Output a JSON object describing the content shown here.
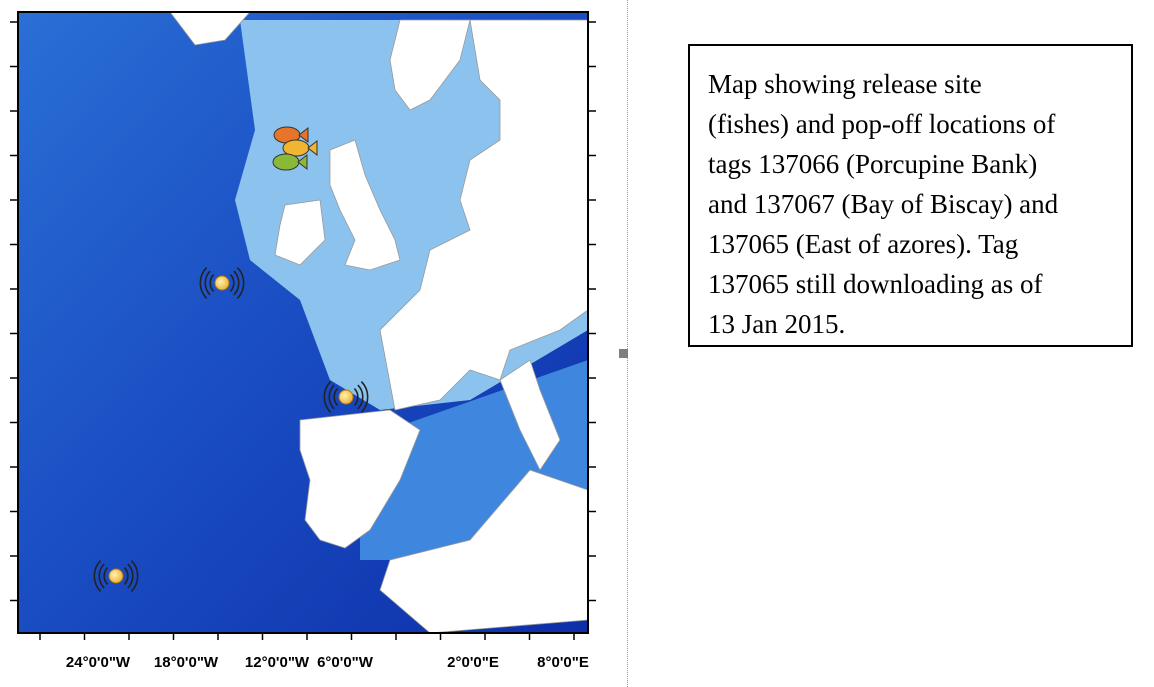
{
  "map": {
    "x_axis_labels": [
      "24°0'0\"W",
      "18°0'0\"W",
      "12°0'0\"W",
      "6°0'0\"W",
      "2°0'0\"E",
      "8°0'0\"E"
    ]
  },
  "caption": {
    "lines": [
      "Map showing release site",
      "(fishes) and pop-off locations of",
      "tags 137066 (Porcupine Bank)",
      "and 137067 (Bay of Biscay) and",
      "137065 (East of azores). Tag",
      "137065 still downloading as of",
      "13 Jan 2015."
    ]
  }
}
